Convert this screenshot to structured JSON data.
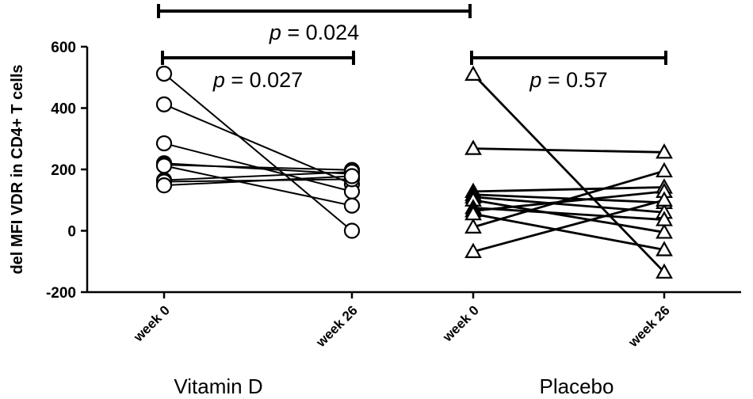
{
  "chart_data": {
    "type": "scatter",
    "title": "",
    "ylabel": "del MFI VDR in CD4+ T cells",
    "ylim": [
      -200,
      600
    ],
    "yticks": [
      -200,
      0,
      200,
      400,
      600
    ],
    "grid": false,
    "categories": [
      "week 0",
      "week 26",
      "week 0",
      "week 26"
    ],
    "groups": [
      {
        "label": "Vitamin D",
        "marker": "circle",
        "categories": [
          0,
          1
        ]
      },
      {
        "label": "Placebo",
        "marker": "triangle",
        "categories": [
          2,
          3
        ]
      }
    ],
    "series": [
      {
        "group": "Vitamin D",
        "week0": 512,
        "week26": 0
      },
      {
        "group": "Vitamin D",
        "week0": 412,
        "week26": 152
      },
      {
        "group": "Vitamin D",
        "week0": 285,
        "week26": 128
      },
      {
        "group": "Vitamin D",
        "week0": 220,
        "week26": 185
      },
      {
        "group": "Vitamin D",
        "week0": 215,
        "week26": 198
      },
      {
        "group": "Vitamin D",
        "week0": 212,
        "week26": 82
      },
      {
        "group": "Vitamin D",
        "week0": 165,
        "week26": 192
      },
      {
        "group": "Vitamin D",
        "week0": 160,
        "week26": 168
      },
      {
        "group": "Vitamin D",
        "week0": 148,
        "week26": 178
      },
      {
        "group": "Placebo",
        "week0": 510,
        "week26": -135
      },
      {
        "group": "Placebo",
        "week0": 268,
        "week26": 256
      },
      {
        "group": "Placebo",
        "week0": 128,
        "week26": 142
      },
      {
        "group": "Placebo",
        "week0": 118,
        "week26": 92
      },
      {
        "group": "Placebo",
        "week0": 110,
        "week26": 60
      },
      {
        "group": "Placebo",
        "week0": 100,
        "week26": -5
      },
      {
        "group": "Placebo",
        "week0": 75,
        "week26": 36
      },
      {
        "group": "Placebo",
        "week0": 65,
        "week26": 128
      },
      {
        "group": "Placebo",
        "week0": 12,
        "week26": 195
      },
      {
        "group": "Placebo",
        "week0": -68,
        "week26": 100
      },
      {
        "group": "Placebo",
        "week0": 55,
        "week26": -62
      }
    ],
    "comparisons": [
      {
        "label": "p = 0.024",
        "from": 0,
        "to": 2,
        "level": "top"
      },
      {
        "label": "p = 0.027",
        "from": 0,
        "to": 1,
        "level": "inner"
      },
      {
        "label": "p = 0.57",
        "from": 2,
        "to": 3,
        "level": "inner"
      }
    ]
  }
}
